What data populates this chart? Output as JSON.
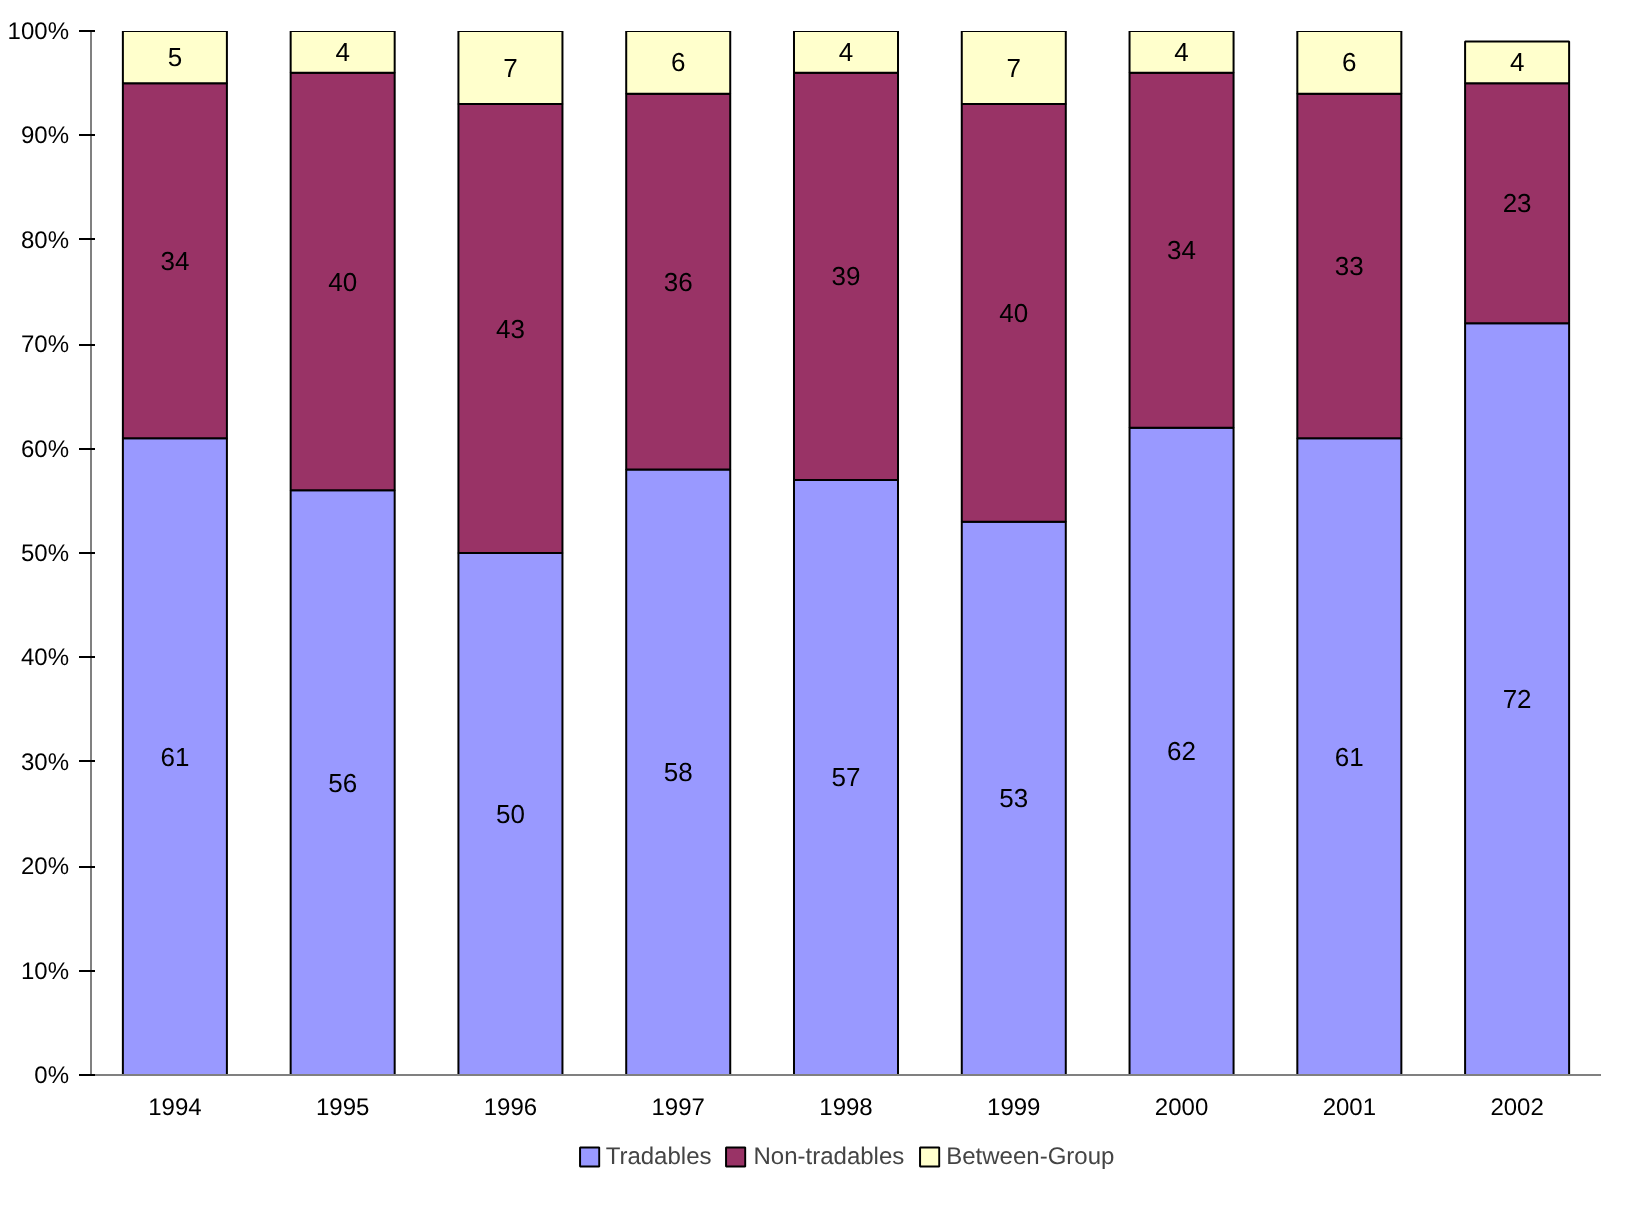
{
  "chart_data": {
    "type": "bar",
    "stacked": true,
    "data_labels": true,
    "categories": [
      "1994",
      "1995",
      "1996",
      "1997",
      "1998",
      "1999",
      "2000",
      "2001",
      "2002"
    ],
    "series": [
      {
        "name": "Tradables",
        "color": "#9999ff",
        "values": [
          61,
          56,
          50,
          58,
          57,
          53,
          62,
          61,
          72
        ]
      },
      {
        "name": "Non-tradables",
        "color": "#993366",
        "values": [
          34,
          40,
          43,
          36,
          39,
          40,
          34,
          33,
          23
        ]
      },
      {
        "name": "Between-Group",
        "color": "#ffffcc",
        "values": [
          5,
          4,
          7,
          6,
          4,
          7,
          4,
          6,
          4
        ]
      }
    ],
    "ylim": [
      0,
      100
    ],
    "yticks": [
      {
        "value": 0,
        "label": "0%"
      },
      {
        "value": 10,
        "label": "10%"
      },
      {
        "value": 20,
        "label": "20%"
      },
      {
        "value": 30,
        "label": "30%"
      },
      {
        "value": 40,
        "label": "40%"
      },
      {
        "value": 50,
        "label": "50%"
      },
      {
        "value": 60,
        "label": "60%"
      },
      {
        "value": 70,
        "label": "70%"
      },
      {
        "value": 80,
        "label": "80%"
      },
      {
        "value": 90,
        "label": "90%"
      },
      {
        "value": 100,
        "label": "100%"
      }
    ],
    "grid": false,
    "legend": "bottom"
  }
}
